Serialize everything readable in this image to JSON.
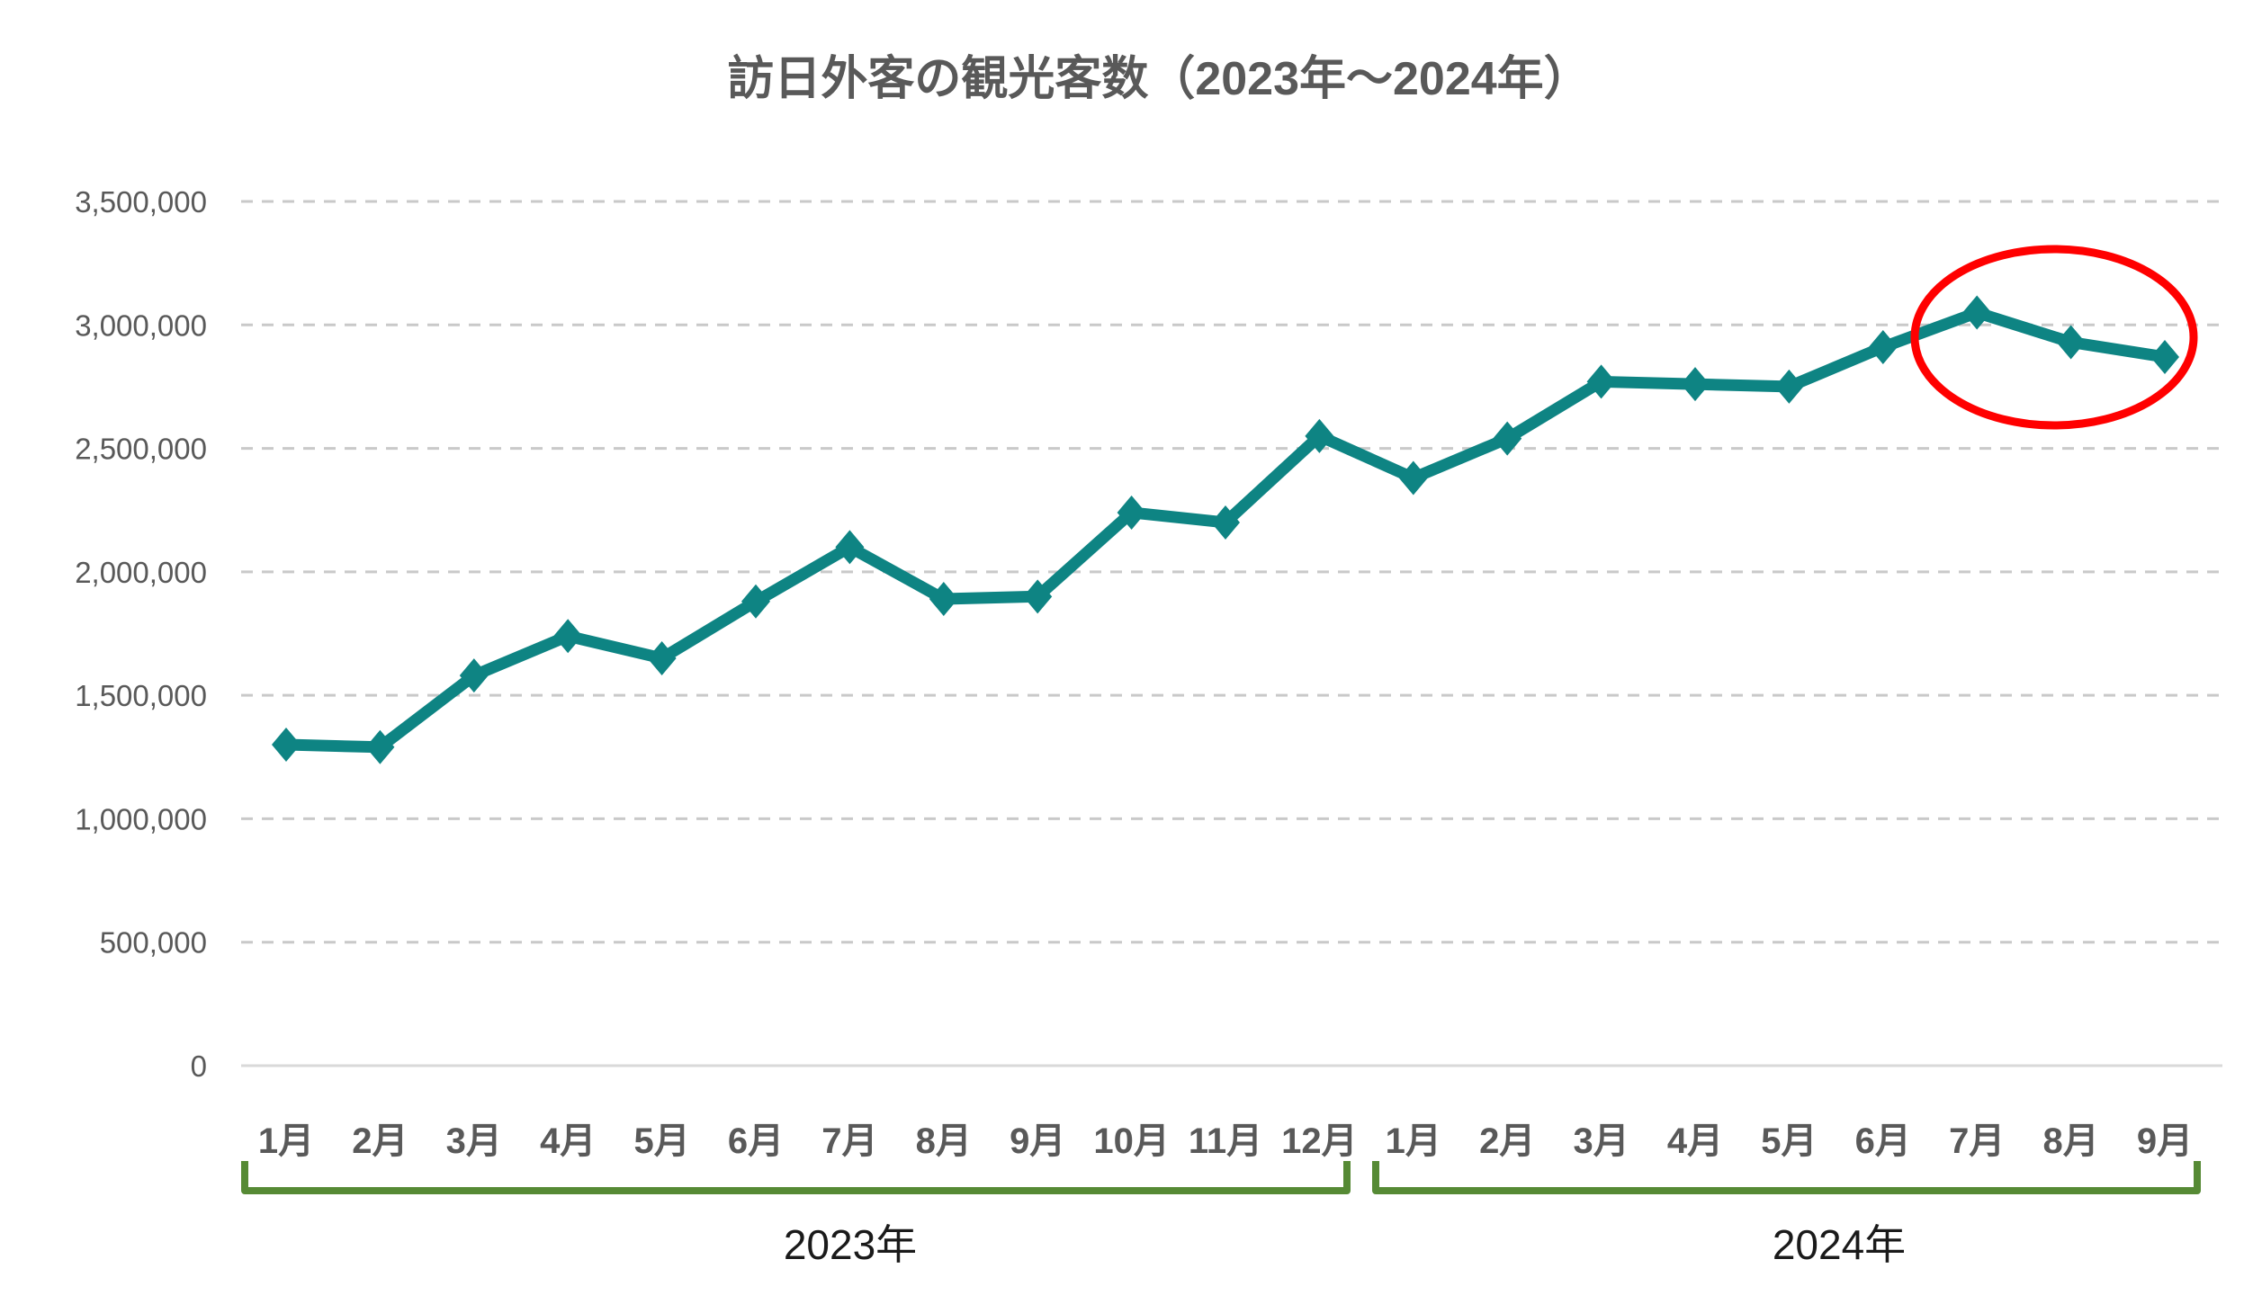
{
  "title": "訪日外客の観光客数（2023年〜2024年）",
  "colors": {
    "line": "#0E8483",
    "marker": "#0E8483",
    "highlight_ellipse": "#FF0000",
    "bracket": "#568A35",
    "axis_text": "#595959",
    "year_text": "#1A1A1A",
    "gridline": "#C9C9C9",
    "baseline": "#D9D9D9",
    "background": "#FFFFFF"
  },
  "chart_data": {
    "type": "line",
    "title": "訪日外客の観光客数（2023年〜2024年）",
    "categories": [
      "1月",
      "2月",
      "3月",
      "4月",
      "5月",
      "6月",
      "7月",
      "8月",
      "9月",
      "10月",
      "11月",
      "12月",
      "1月",
      "2月",
      "3月",
      "4月",
      "5月",
      "6月",
      "7月",
      "8月",
      "9月"
    ],
    "category_groups": [
      {
        "label": "2023年",
        "start_index": 0,
        "end_index": 11
      },
      {
        "label": "2024年",
        "start_index": 12,
        "end_index": 20
      }
    ],
    "series": [
      {
        "name": "訪日外客の観光客数",
        "values": [
          1300000,
          1290000,
          1580000,
          1740000,
          1650000,
          1880000,
          2100000,
          1890000,
          1900000,
          2240000,
          2200000,
          2550000,
          2380000,
          2540000,
          2770000,
          2760000,
          2750000,
          2910000,
          3050000,
          2930000,
          2870000
        ]
      }
    ],
    "ylim": [
      0,
      3500000
    ],
    "ytick_interval": 500000,
    "ytick_labels": [
      "0",
      "500,000",
      "1,000,000",
      "1,500,000",
      "2,000,000",
      "2,500,000",
      "3,000,000",
      "3,500,000"
    ],
    "xlabel": "",
    "ylabel": "",
    "grid": "horizontal-dashed",
    "legend": "none",
    "marker": "diamond",
    "annotations": [
      {
        "type": "ellipse",
        "purpose": "highlight-decline",
        "points": [
          "2024年7月",
          "2024年8月",
          "2024年9月"
        ]
      }
    ]
  }
}
